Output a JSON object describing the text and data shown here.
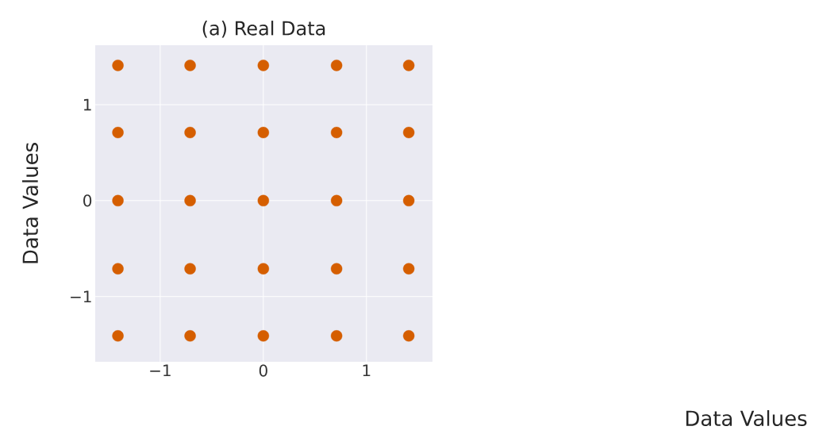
{
  "chart_data": {
    "type": "scatter",
    "title": "(a) Real Data",
    "ylabel": "Data Values",
    "annotations": [
      "Data Values"
    ],
    "series": [
      {
        "color": "#d55e00",
        "x": [
          -1.41,
          -0.71,
          0,
          0.71,
          1.41,
          -1.41,
          -0.71,
          0,
          0.71,
          1.41,
          -1.41,
          -0.71,
          0,
          0.71,
          1.41,
          -1.41,
          -0.71,
          0,
          0.71,
          1.41,
          -1.41,
          -0.71,
          0,
          0.71,
          1.41
        ],
        "values": [
          1.41,
          1.41,
          1.41,
          1.41,
          1.41,
          0.71,
          0.71,
          0.71,
          0.71,
          0.71,
          0,
          0,
          0,
          0,
          0,
          -0.71,
          -0.71,
          -0.71,
          -0.71,
          -0.71,
          -1.41,
          -1.41,
          -1.41,
          -1.41,
          -1.41
        ]
      }
    ],
    "xlim": [
      -1.63,
      1.64
    ],
    "ylim": [
      -1.68,
      1.62
    ],
    "xticks": [
      {
        "value": -1,
        "label": "−1"
      },
      0,
      1
    ],
    "yticks": [
      {
        "value": -1,
        "label": "−1"
      },
      0,
      1
    ],
    "grid": true
  }
}
